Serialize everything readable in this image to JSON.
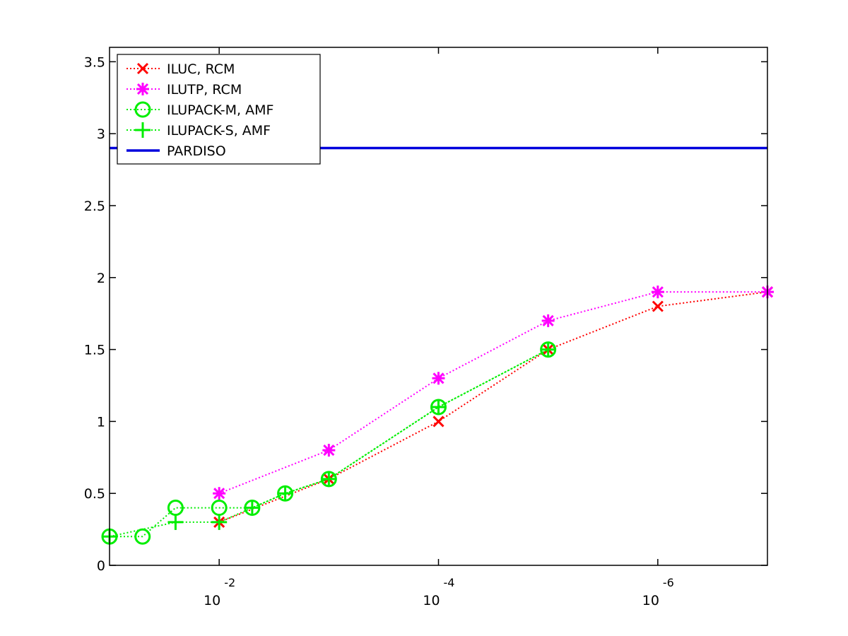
{
  "chart_data": {
    "type": "line",
    "title": "",
    "xlabel": "",
    "ylabel": "",
    "x_scale": "log",
    "x_direction": "decreasing",
    "xlim": [
      0.1,
      1e-07
    ],
    "ylim": [
      0,
      3.6
    ],
    "x_ticks": [
      {
        "value": 0.01,
        "base": "10",
        "exponent": "-2"
      },
      {
        "value": 0.0001,
        "base": "10",
        "exponent": "-4"
      },
      {
        "value": 1e-06,
        "base": "10",
        "exponent": "-6"
      }
    ],
    "y_ticks": [
      {
        "value": 0,
        "label": "0"
      },
      {
        "value": 0.5,
        "label": "0.5"
      },
      {
        "value": 1,
        "label": "1"
      },
      {
        "value": 1.5,
        "label": "1.5"
      },
      {
        "value": 2,
        "label": "2"
      },
      {
        "value": 2.5,
        "label": "2.5"
      },
      {
        "value": 3,
        "label": "3"
      },
      {
        "value": 3.5,
        "label": "3.5"
      }
    ],
    "legend_position": "top-left",
    "series": [
      {
        "name": "ILUC, RCM",
        "color": "#ff0000",
        "line": "dotted",
        "marker": "x",
        "points": [
          {
            "x": 0.01,
            "y": 0.3
          },
          {
            "x": 0.001,
            "y": 0.6
          },
          {
            "x": 0.0001,
            "y": 1.0
          },
          {
            "x": 1e-05,
            "y": 1.5
          },
          {
            "x": 1e-06,
            "y": 1.8
          },
          {
            "x": 1e-07,
            "y": 1.9
          }
        ]
      },
      {
        "name": "ILUTP, RCM",
        "color": "#ff00ff",
        "line": "dotted",
        "marker": "asterisk",
        "points": [
          {
            "x": 0.01,
            "y": 0.5
          },
          {
            "x": 0.001,
            "y": 0.8
          },
          {
            "x": 0.0001,
            "y": 1.3
          },
          {
            "x": 1e-05,
            "y": 1.7
          },
          {
            "x": 1e-06,
            "y": 1.9
          },
          {
            "x": 1e-07,
            "y": 1.9
          }
        ]
      },
      {
        "name": "ILUPACK-M, AMF",
        "color": "#00ee00",
        "line": "dotted",
        "marker": "circle",
        "points": [
          {
            "x": 0.1,
            "y": 0.2
          },
          {
            "x": 0.05,
            "y": 0.2
          },
          {
            "x": 0.025,
            "y": 0.4
          },
          {
            "x": 0.01,
            "y": 0.4
          },
          {
            "x": 0.005,
            "y": 0.4
          },
          {
            "x": 0.0025,
            "y": 0.5
          },
          {
            "x": 0.001,
            "y": 0.6
          },
          {
            "x": 0.0001,
            "y": 1.1
          },
          {
            "x": 1e-05,
            "y": 1.5
          }
        ]
      },
      {
        "name": "ILUPACK-S, AMF",
        "color": "#00ee00",
        "line": "dotted",
        "marker": "plus",
        "points": [
          {
            "x": 0.1,
            "y": 0.2
          },
          {
            "x": 0.025,
            "y": 0.3
          },
          {
            "x": 0.01,
            "y": 0.3
          },
          {
            "x": 0.005,
            "y": 0.4
          },
          {
            "x": 0.0025,
            "y": 0.5
          },
          {
            "x": 0.001,
            "y": 0.6
          },
          {
            "x": 0.0001,
            "y": 1.1
          },
          {
            "x": 1e-05,
            "y": 1.5
          }
        ]
      },
      {
        "name": "PARDISO",
        "color": "#0000dd",
        "line": "solid",
        "marker": "none",
        "constant_y": 2.9
      }
    ]
  }
}
